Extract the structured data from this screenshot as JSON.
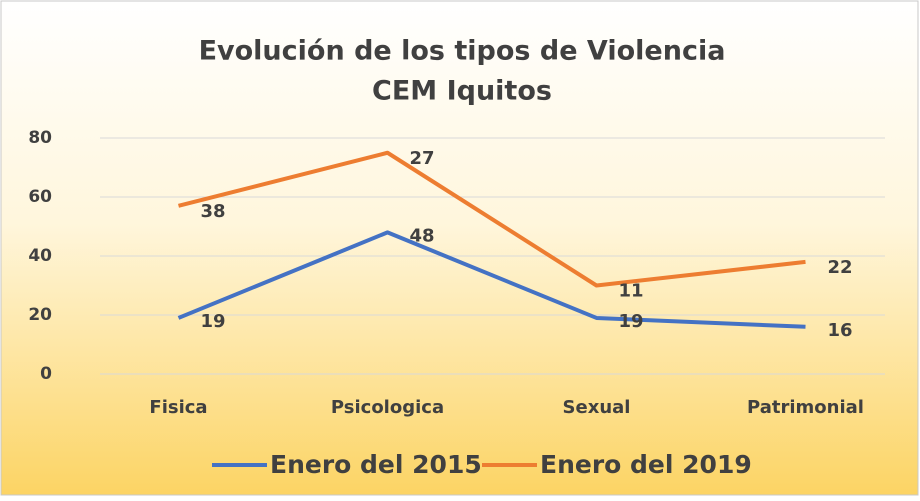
{
  "chart_data": {
    "type": "line",
    "stacked": true,
    "title": "Evolución de los tipos de Violencia",
    "subtitle": "CEM Iquitos",
    "categories": [
      "Fisica",
      "Psicologica",
      "Sexual",
      "Patrimonial"
    ],
    "series": [
      {
        "name": "Enero del 2015",
        "color": "#4472c4",
        "values": [
          19,
          48,
          19,
          16
        ]
      },
      {
        "name": "Enero del 2019",
        "color": "#ed7d31",
        "values": [
          38,
          27,
          11,
          22
        ]
      }
    ],
    "ylim": [
      0,
      80
    ],
    "yticks": [
      0,
      20,
      40,
      60,
      80
    ],
    "grid": true,
    "legend": "bottom"
  }
}
